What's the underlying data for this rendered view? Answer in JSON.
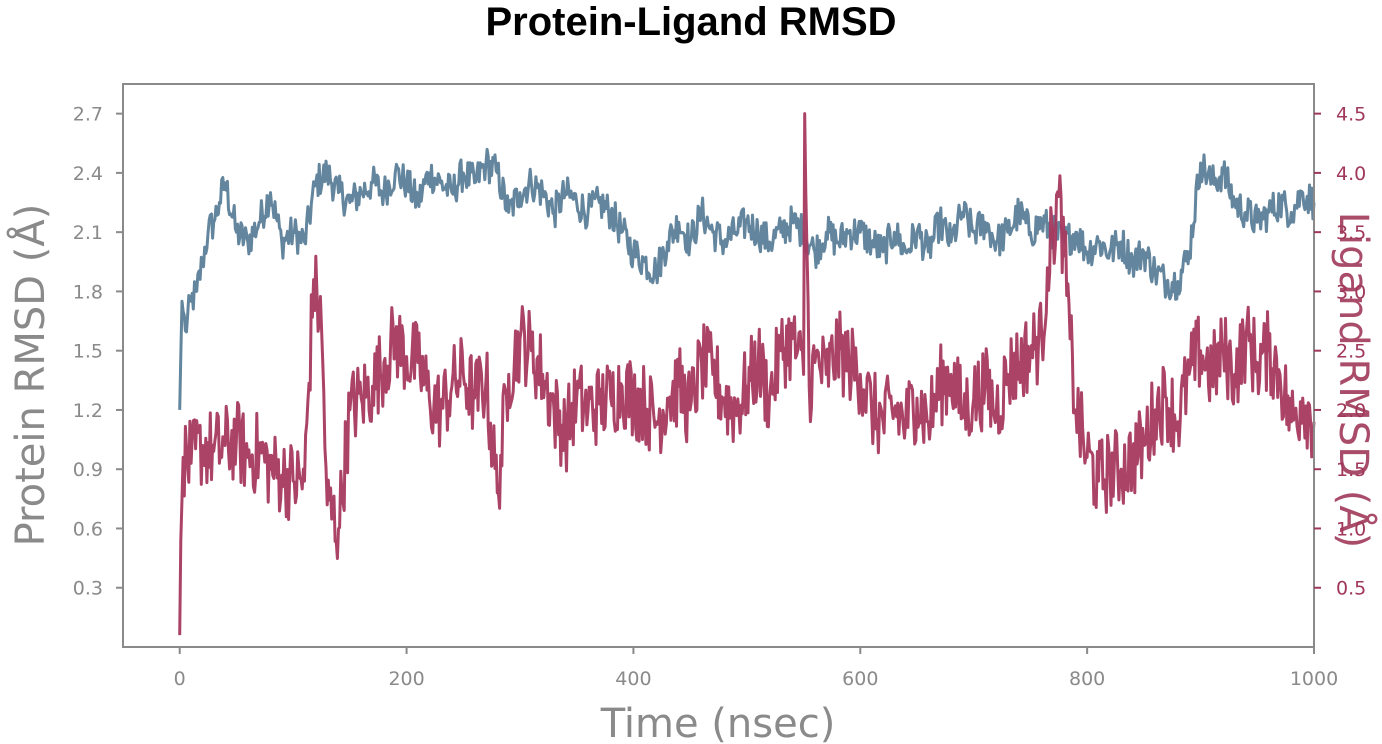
{
  "chart_data": {
    "type": "line",
    "title": "Protein-Ligand RMSD",
    "xlabel": "Time (nsec)",
    "ylabel_left": "Protein RMSD (Å)",
    "ylabel_right": "Ligand RMSD (Å)",
    "xlim": [
      -50,
      1000
    ],
    "ylim_left": [
      0.0,
      2.85
    ],
    "ylim_right": [
      0.0,
      4.75
    ],
    "x_ticks": [
      0,
      200,
      400,
      600,
      800,
      1000
    ],
    "y_ticks_left": [
      0.3,
      0.6,
      0.9,
      1.2,
      1.5,
      1.8,
      2.1,
      2.4,
      2.7
    ],
    "y_ticks_right": [
      0.5,
      1.0,
      1.5,
      2.0,
      2.5,
      3.0,
      3.5,
      4.0,
      4.5
    ],
    "grid": false,
    "series": [
      {
        "name": "Protein RMSD",
        "axis": "left",
        "color": "#5b7f99",
        "points": [
          [
            0,
            1.2
          ],
          [
            2,
            1.75
          ],
          [
            5,
            1.6
          ],
          [
            10,
            1.75
          ],
          [
            15,
            1.8
          ],
          [
            20,
            1.95
          ],
          [
            25,
            2.1
          ],
          [
            30,
            2.15
          ],
          [
            35,
            2.25
          ],
          [
            40,
            2.35
          ],
          [
            50,
            2.1
          ],
          [
            60,
            2.05
          ],
          [
            70,
            2.15
          ],
          [
            80,
            2.3
          ],
          [
            90,
            2.05
          ],
          [
            100,
            2.1
          ],
          [
            110,
            2.05
          ],
          [
            120,
            2.35
          ],
          [
            130,
            2.4
          ],
          [
            140,
            2.3
          ],
          [
            150,
            2.25
          ],
          [
            160,
            2.3
          ],
          [
            170,
            2.35
          ],
          [
            180,
            2.3
          ],
          [
            190,
            2.4
          ],
          [
            200,
            2.35
          ],
          [
            210,
            2.25
          ],
          [
            220,
            2.4
          ],
          [
            230,
            2.35
          ],
          [
            240,
            2.3
          ],
          [
            250,
            2.4
          ],
          [
            260,
            2.35
          ],
          [
            270,
            2.45
          ],
          [
            280,
            2.4
          ],
          [
            290,
            2.2
          ],
          [
            300,
            2.3
          ],
          [
            310,
            2.35
          ],
          [
            320,
            2.3
          ],
          [
            330,
            2.2
          ],
          [
            340,
            2.3
          ],
          [
            350,
            2.25
          ],
          [
            360,
            2.2
          ],
          [
            370,
            2.25
          ],
          [
            380,
            2.2
          ],
          [
            390,
            2.1
          ],
          [
            400,
            2.0
          ],
          [
            410,
            1.95
          ],
          [
            420,
            1.9
          ],
          [
            430,
            2.05
          ],
          [
            440,
            2.15
          ],
          [
            450,
            2.05
          ],
          [
            460,
            2.2
          ],
          [
            470,
            2.1
          ],
          [
            480,
            2.05
          ],
          [
            490,
            2.1
          ],
          [
            500,
            2.15
          ],
          [
            510,
            2.1
          ],
          [
            520,
            2.05
          ],
          [
            530,
            2.1
          ],
          [
            540,
            2.15
          ],
          [
            550,
            2.1
          ],
          [
            560,
            2.0
          ],
          [
            570,
            2.1
          ],
          [
            580,
            2.05
          ],
          [
            590,
            2.1
          ],
          [
            600,
            2.1
          ],
          [
            610,
            2.05
          ],
          [
            620,
            2.0
          ],
          [
            630,
            2.1
          ],
          [
            640,
            2.0
          ],
          [
            650,
            2.1
          ],
          [
            660,
            2.0
          ],
          [
            670,
            2.15
          ],
          [
            680,
            2.05
          ],
          [
            690,
            2.2
          ],
          [
            700,
            2.1
          ],
          [
            710,
            2.15
          ],
          [
            720,
            2.05
          ],
          [
            730,
            2.1
          ],
          [
            740,
            2.2
          ],
          [
            750,
            2.1
          ],
          [
            760,
            2.15
          ],
          [
            770,
            2.1
          ],
          [
            780,
            2.05
          ],
          [
            790,
            2.1
          ],
          [
            800,
            2.0
          ],
          [
            810,
            2.05
          ],
          [
            820,
            2.0
          ],
          [
            830,
            2.05
          ],
          [
            840,
            1.95
          ],
          [
            850,
            2.0
          ],
          [
            860,
            1.9
          ],
          [
            870,
            1.85
          ],
          [
            880,
            1.85
          ],
          [
            890,
            2.0
          ],
          [
            900,
            2.45
          ],
          [
            910,
            2.35
          ],
          [
            920,
            2.4
          ],
          [
            930,
            2.25
          ],
          [
            940,
            2.2
          ],
          [
            950,
            2.15
          ],
          [
            960,
            2.2
          ],
          [
            970,
            2.25
          ],
          [
            980,
            2.2
          ],
          [
            990,
            2.3
          ],
          [
            1000,
            2.25
          ]
        ]
      },
      {
        "name": "Ligand RMSD",
        "axis": "right",
        "color": "#a6395f",
        "points": [
          [
            0,
            0.1
          ],
          [
            1,
            0.9
          ],
          [
            3,
            1.6
          ],
          [
            10,
            1.55
          ],
          [
            20,
            1.7
          ],
          [
            30,
            1.65
          ],
          [
            40,
            1.7
          ],
          [
            50,
            1.75
          ],
          [
            60,
            1.6
          ],
          [
            70,
            1.65
          ],
          [
            80,
            1.5
          ],
          [
            90,
            1.45
          ],
          [
            100,
            1.4
          ],
          [
            110,
            1.4
          ],
          [
            118,
            3.1
          ],
          [
            125,
            2.7
          ],
          [
            130,
            1.2
          ],
          [
            140,
            1.0
          ],
          [
            150,
            2.0
          ],
          [
            160,
            2.1
          ],
          [
            170,
            2.2
          ],
          [
            180,
            2.4
          ],
          [
            190,
            2.6
          ],
          [
            200,
            2.45
          ],
          [
            210,
            2.4
          ],
          [
            220,
            2.1
          ],
          [
            230,
            2.0
          ],
          [
            240,
            2.2
          ],
          [
            250,
            2.3
          ],
          [
            260,
            2.1
          ],
          [
            270,
            2.25
          ],
          [
            280,
            1.3
          ],
          [
            290,
            2.3
          ],
          [
            300,
            2.6
          ],
          [
            310,
            2.5
          ],
          [
            320,
            2.3
          ],
          [
            330,
            2.0
          ],
          [
            340,
            1.8
          ],
          [
            350,
            2.1
          ],
          [
            360,
            2.0
          ],
          [
            370,
            2.05
          ],
          [
            380,
            2.1
          ],
          [
            390,
            2.2
          ],
          [
            400,
            2.1
          ],
          [
            410,
            2.05
          ],
          [
            420,
            1.9
          ],
          [
            430,
            2.1
          ],
          [
            440,
            2.2
          ],
          [
            450,
            2.0
          ],
          [
            460,
            2.4
          ],
          [
            470,
            2.3
          ],
          [
            480,
            2.1
          ],
          [
            490,
            2.0
          ],
          [
            500,
            2.2
          ],
          [
            510,
            2.4
          ],
          [
            520,
            2.1
          ],
          [
            530,
            2.5
          ],
          [
            540,
            2.6
          ],
          [
            550,
            2.3
          ],
          [
            551,
            4.5
          ],
          [
            555,
            2.2
          ],
          [
            560,
            2.4
          ],
          [
            570,
            2.3
          ],
          [
            580,
            2.5
          ],
          [
            590,
            2.4
          ],
          [
            600,
            2.3
          ],
          [
            610,
            2.0
          ],
          [
            620,
            1.9
          ],
          [
            630,
            2.0
          ],
          [
            640,
            1.9
          ],
          [
            650,
            2.1
          ],
          [
            660,
            1.9
          ],
          [
            670,
            2.2
          ],
          [
            680,
            2.3
          ],
          [
            690,
            2.0
          ],
          [
            700,
            2.1
          ],
          [
            710,
            2.2
          ],
          [
            720,
            2.0
          ],
          [
            730,
            2.3
          ],
          [
            740,
            2.4
          ],
          [
            750,
            2.5
          ],
          [
            760,
            2.6
          ],
          [
            765,
            3.2
          ],
          [
            770,
            3.5
          ],
          [
            775,
            3.8
          ],
          [
            780,
            3.3
          ],
          [
            785,
            2.6
          ],
          [
            790,
            2.0
          ],
          [
            800,
            1.6
          ],
          [
            810,
            1.4
          ],
          [
            820,
            1.5
          ],
          [
            830,
            1.5
          ],
          [
            840,
            1.6
          ],
          [
            850,
            1.7
          ],
          [
            860,
            2.0
          ],
          [
            870,
            2.1
          ],
          [
            880,
            1.9
          ],
          [
            890,
            2.3
          ],
          [
            900,
            2.5
          ],
          [
            910,
            2.3
          ],
          [
            920,
            2.5
          ],
          [
            930,
            2.3
          ],
          [
            940,
            2.6
          ],
          [
            950,
            2.4
          ],
          [
            960,
            2.5
          ],
          [
            970,
            2.3
          ],
          [
            980,
            1.9
          ],
          [
            990,
            2.1
          ],
          [
            1000,
            1.9
          ]
        ]
      }
    ]
  }
}
